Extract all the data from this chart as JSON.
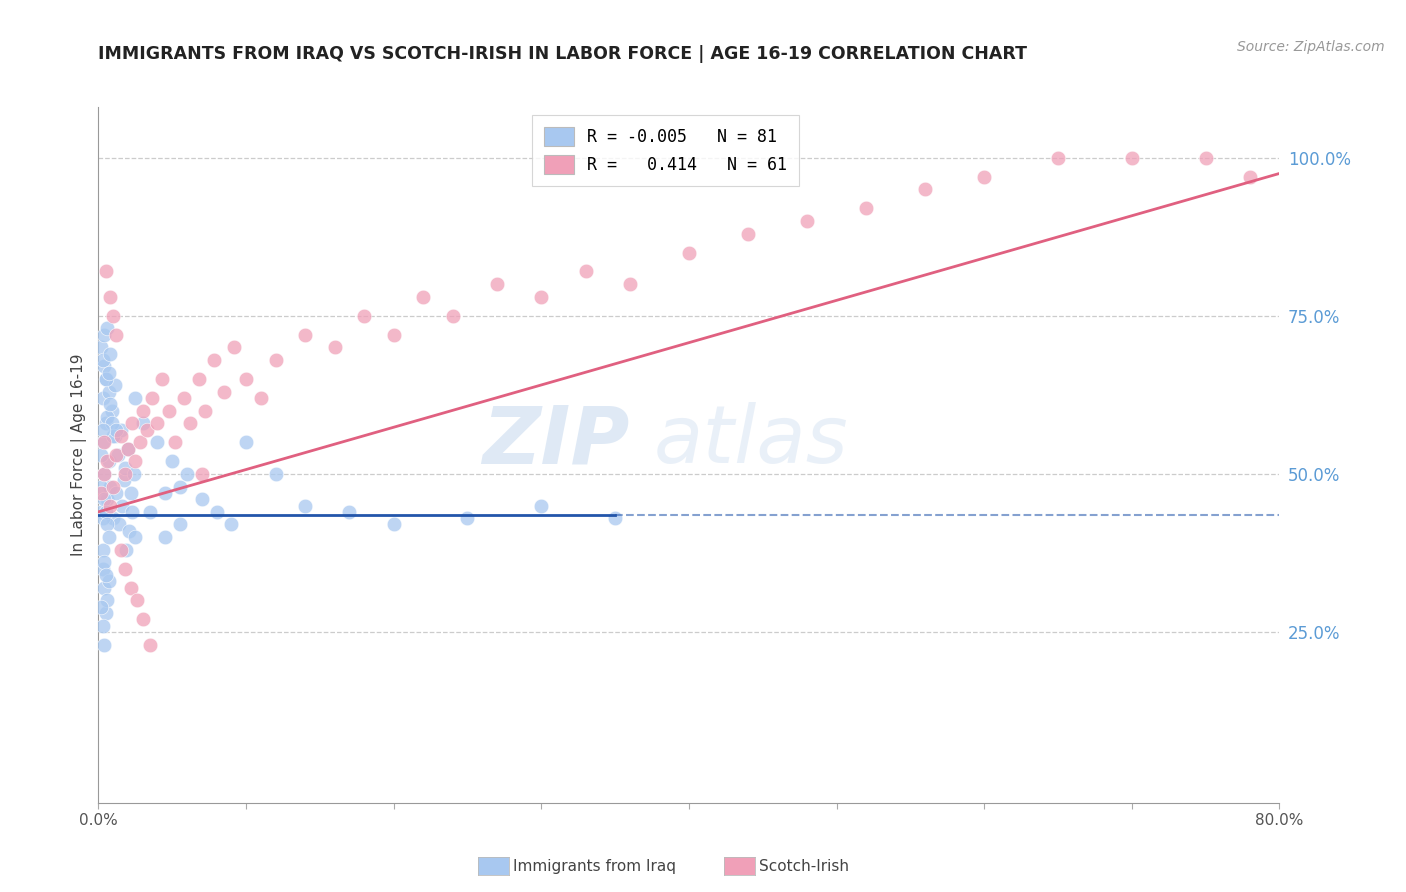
{
  "title": "IMMIGRANTS FROM IRAQ VS SCOTCH-IRISH IN LABOR FORCE | AGE 16-19 CORRELATION CHART",
  "source": "Source: ZipAtlas.com",
  "ylabel": "In Labor Force | Age 16-19",
  "xlim": [
    0.0,
    0.8
  ],
  "ylim": [
    -0.02,
    1.08
  ],
  "xticks": [
    0.0,
    0.1,
    0.2,
    0.3,
    0.4,
    0.5,
    0.6,
    0.7,
    0.8
  ],
  "xticklabels": [
    "0.0%",
    "",
    "",
    "",
    "",
    "",
    "",
    "",
    "80.0%"
  ],
  "ytick_right_values": [
    1.0,
    0.75,
    0.5,
    0.25
  ],
  "ytick_right_labels": [
    "100.0%",
    "75.0%",
    "50.0%",
    "25.0%"
  ],
  "iraq_color": "#a8c8f0",
  "scotch_color": "#f0a0b8",
  "iraq_line_color": "#2255aa",
  "scotch_line_color": "#e06080",
  "iraq_line_solid_end": 0.35,
  "iraq_line_y": 0.435,
  "scotch_line_y0": 0.44,
  "scotch_line_y1": 0.975,
  "watermark_zip": "ZIP",
  "watermark_atlas": "atlas",
  "legend_r1": "R = -0.005   N = 81",
  "legend_r2": "R =   0.414   N = 61",
  "iraq_x": [
    0.002,
    0.003,
    0.004,
    0.005,
    0.006,
    0.007,
    0.008,
    0.009,
    0.01,
    0.011,
    0.012,
    0.013,
    0.014,
    0.015,
    0.016,
    0.017,
    0.018,
    0.019,
    0.02,
    0.021,
    0.022,
    0.023,
    0.024,
    0.025,
    0.003,
    0.004,
    0.005,
    0.006,
    0.007,
    0.008,
    0.009,
    0.01,
    0.011,
    0.012,
    0.003,
    0.004,
    0.005,
    0.006,
    0.007,
    0.002,
    0.003,
    0.004,
    0.005,
    0.006,
    0.007,
    0.008,
    0.003,
    0.004,
    0.005,
    0.002,
    0.003,
    0.004,
    0.002,
    0.003,
    0.004,
    0.005,
    0.006,
    0.007,
    0.002,
    0.003,
    0.025,
    0.03,
    0.04,
    0.05,
    0.055,
    0.06,
    0.07,
    0.08,
    0.09,
    0.1,
    0.12,
    0.14,
    0.17,
    0.2,
    0.25,
    0.3,
    0.35,
    0.045,
    0.035,
    0.055,
    0.045
  ],
  "iraq_y": [
    0.44,
    0.55,
    0.5,
    0.58,
    0.46,
    0.52,
    0.48,
    0.6,
    0.43,
    0.56,
    0.47,
    0.53,
    0.42,
    0.57,
    0.45,
    0.49,
    0.51,
    0.38,
    0.54,
    0.41,
    0.47,
    0.44,
    0.5,
    0.4,
    0.62,
    0.67,
    0.65,
    0.59,
    0.63,
    0.61,
    0.58,
    0.56,
    0.64,
    0.57,
    0.35,
    0.32,
    0.28,
    0.3,
    0.33,
    0.7,
    0.68,
    0.72,
    0.65,
    0.73,
    0.66,
    0.69,
    0.38,
    0.36,
    0.34,
    0.29,
    0.26,
    0.23,
    0.48,
    0.43,
    0.46,
    0.44,
    0.42,
    0.4,
    0.53,
    0.57,
    0.62,
    0.58,
    0.55,
    0.52,
    0.48,
    0.5,
    0.46,
    0.44,
    0.42,
    0.55,
    0.5,
    0.45,
    0.44,
    0.42,
    0.43,
    0.45,
    0.43,
    0.47,
    0.44,
    0.42,
    0.4
  ],
  "scotch_x": [
    0.002,
    0.004,
    0.004,
    0.006,
    0.008,
    0.01,
    0.012,
    0.015,
    0.018,
    0.02,
    0.023,
    0.025,
    0.028,
    0.03,
    0.033,
    0.036,
    0.04,
    0.043,
    0.048,
    0.052,
    0.058,
    0.062,
    0.068,
    0.072,
    0.078,
    0.085,
    0.092,
    0.1,
    0.11,
    0.12,
    0.14,
    0.16,
    0.18,
    0.2,
    0.22,
    0.24,
    0.27,
    0.3,
    0.33,
    0.36,
    0.4,
    0.44,
    0.48,
    0.52,
    0.56,
    0.6,
    0.65,
    0.7,
    0.75,
    0.78,
    0.005,
    0.008,
    0.01,
    0.012,
    0.015,
    0.018,
    0.022,
    0.026,
    0.03,
    0.035,
    0.07
  ],
  "scotch_y": [
    0.47,
    0.5,
    0.55,
    0.52,
    0.45,
    0.48,
    0.53,
    0.56,
    0.5,
    0.54,
    0.58,
    0.52,
    0.55,
    0.6,
    0.57,
    0.62,
    0.58,
    0.65,
    0.6,
    0.55,
    0.62,
    0.58,
    0.65,
    0.6,
    0.68,
    0.63,
    0.7,
    0.65,
    0.62,
    0.68,
    0.72,
    0.7,
    0.75,
    0.72,
    0.78,
    0.75,
    0.8,
    0.78,
    0.82,
    0.8,
    0.85,
    0.88,
    0.9,
    0.92,
    0.95,
    0.97,
    1.0,
    1.0,
    1.0,
    0.97,
    0.82,
    0.78,
    0.75,
    0.72,
    0.38,
    0.35,
    0.32,
    0.3,
    0.27,
    0.23,
    0.5
  ]
}
